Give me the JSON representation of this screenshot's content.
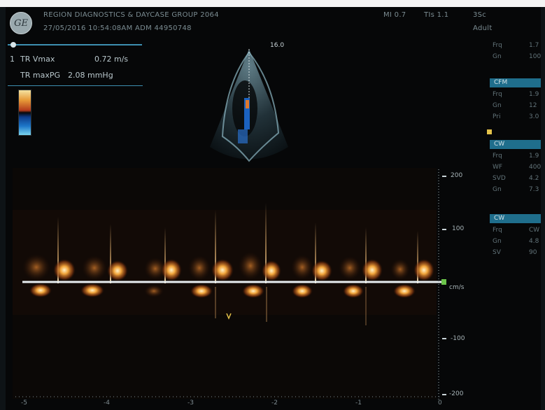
{
  "header": {
    "logo_text": "GE",
    "line1": "REGION DIAGNOSTICS & DAYCASE   GROUP 2064",
    "line2": "27/05/2016 10:54:08AM      ADM      44950748",
    "mi": "MI 0.7",
    "tis": "TIs 1.1",
    "mode": "3Sc",
    "acq": "Adult"
  },
  "measurement": {
    "index": "1",
    "row1_label": "TR Vmax",
    "row1_value": "0.72 m/s",
    "row2_label": "TR maxPG",
    "row2_value": "2.08 mmHg"
  },
  "image": {
    "depth_label": "16.0"
  },
  "scale": {
    "labels": [
      "200",
      "100",
      "cm/s",
      "-100",
      "-200"
    ],
    "time_labels": [
      "-5",
      "-4",
      "-3",
      "-2",
      "-1",
      "0"
    ]
  },
  "right_panel": {
    "top": [
      {
        "label": "Frq",
        "value": "1.7"
      },
      {
        "label": "Gn",
        "value": "100"
      }
    ],
    "tab_cfm": "CFM",
    "cfm": [
      {
        "label": "Frq",
        "value": "1.9"
      },
      {
        "label": "Gn",
        "value": "12"
      },
      {
        "label": "Pri",
        "value": "3.0"
      }
    ],
    "tab_cw": "CW",
    "cw": [
      {
        "label": "Frq",
        "value": "1.9"
      },
      {
        "label": "WF",
        "value": "400"
      },
      {
        "label": "SVD",
        "value": "4.2"
      },
      {
        "label": "Gn",
        "value": "7.3"
      }
    ],
    "tab_cw2": "CW",
    "cw2": [
      {
        "label": "Frq",
        "value": "CW"
      },
      {
        "label": "Gn",
        "value": "4.8"
      },
      {
        "label": "SV",
        "value": "90"
      }
    ]
  },
  "colors": {
    "accent": "#1f6e8c",
    "doppler": "#f1a43c",
    "baseline": "#e8eef0"
  }
}
